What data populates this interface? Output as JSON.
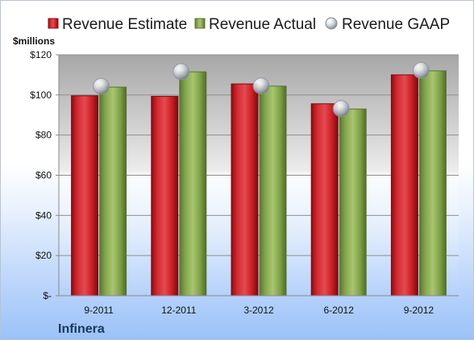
{
  "chart_data": {
    "type": "bar",
    "title": "",
    "company": "Infinera",
    "units": "$millions",
    "categories": [
      "9-2011",
      "12-2011",
      "3-2012",
      "6-2012",
      "9-2012"
    ],
    "series": [
      {
        "name": "Revenue Estimate",
        "values": [
          99.6,
          99.3,
          105.5,
          95.6,
          110.0
        ],
        "color": "#d3252c"
      },
      {
        "name": "Revenue Actual",
        "values": [
          103.9,
          111.5,
          104.4,
          93.0,
          112.0
        ],
        "color": "#86a74e"
      },
      {
        "name": "Revenue GAAP",
        "values": [
          104.3,
          111.6,
          104.5,
          93.2,
          112.2
        ],
        "color": "#b8bcc4",
        "marker": "sphere"
      }
    ],
    "y_ticks": [
      "$-",
      "$20",
      "$40",
      "$60",
      "$80",
      "$100",
      "$120"
    ],
    "y_tick_values": [
      0,
      20,
      40,
      60,
      80,
      100,
      120
    ],
    "ylim": [
      0,
      120
    ],
    "grid": true,
    "legend": "top"
  }
}
